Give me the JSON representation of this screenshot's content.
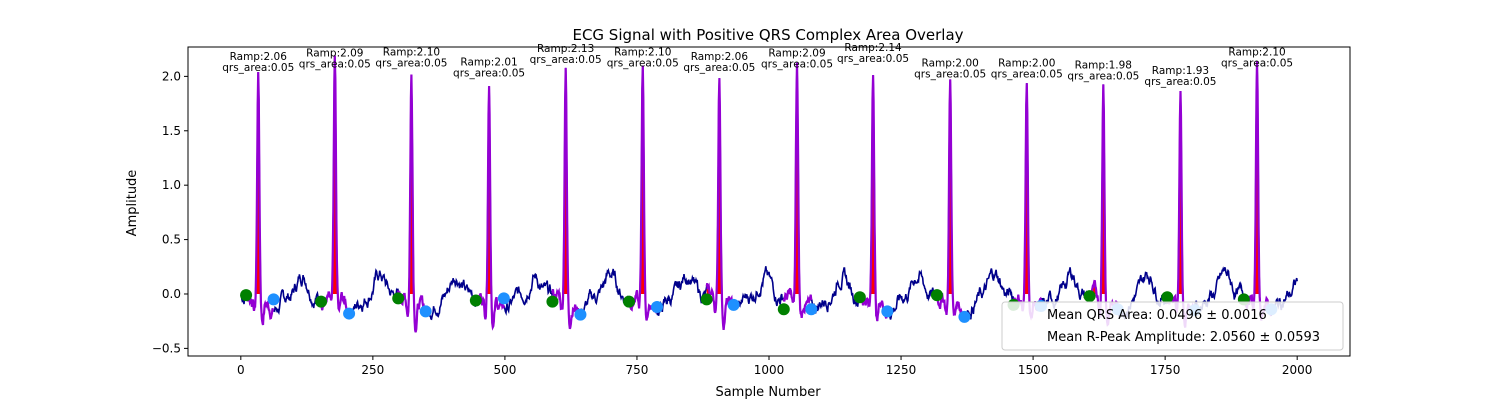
{
  "chart_data": {
    "type": "line",
    "title": "ECG Signal with Positive QRS Complex Area Overlay",
    "xlabel": "Sample Number",
    "ylabel": "Amplitude",
    "xlim": [
      -100,
      2100
    ],
    "ylim": [
      -0.57,
      2.27
    ],
    "xticks": [
      0,
      250,
      500,
      750,
      1000,
      1250,
      1500,
      1750,
      2000
    ],
    "yticks": [
      -0.5,
      0.0,
      0.5,
      1.0,
      1.5,
      2.0
    ],
    "grid": false,
    "num_samples": 2000,
    "colors": {
      "ecg_signal": "#00008b",
      "qrs_complex": "#9400d3",
      "qrs_area_fill": "#ff0000",
      "q_onset_marker": "#008000",
      "s_offset_marker": "#1e90ff"
    },
    "r_peaks": [
      {
        "x": 33,
        "ramp": 2.06,
        "ramp_label": "Ramp:2.06",
        "qrs_area_label": "qrs_area:0.05",
        "onset": {
          "x": 10,
          "y": -0.01
        },
        "offset": {
          "x": 62,
          "y": -0.05
        }
      },
      {
        "x": 178,
        "ramp": 2.09,
        "ramp_label": "Ramp:2.09",
        "qrs_area_label": "qrs_area:0.05",
        "onset": {
          "x": 152,
          "y": -0.07
        },
        "offset": {
          "x": 205,
          "y": -0.18
        }
      },
      {
        "x": 323,
        "ramp": 2.1,
        "ramp_label": "Ramp:2.10",
        "qrs_area_label": "qrs_area:0.05",
        "onset": {
          "x": 298,
          "y": -0.04
        },
        "offset": {
          "x": 350,
          "y": -0.16
        }
      },
      {
        "x": 470,
        "ramp": 2.01,
        "ramp_label": "Ramp:2.01",
        "qrs_area_label": "qrs_area:0.05",
        "onset": {
          "x": 445,
          "y": -0.06
        },
        "offset": {
          "x": 498,
          "y": -0.04
        }
      },
      {
        "x": 615,
        "ramp": 2.13,
        "ramp_label": "Ramp:2.13",
        "qrs_area_label": "qrs_area:0.05",
        "onset": {
          "x": 590,
          "y": -0.07
        },
        "offset": {
          "x": 643,
          "y": -0.19
        }
      },
      {
        "x": 761,
        "ramp": 2.1,
        "ramp_label": "Ramp:2.10",
        "qrs_area_label": "qrs_area:0.05",
        "onset": {
          "x": 735,
          "y": -0.07
        },
        "offset": {
          "x": 788,
          "y": -0.12
        }
      },
      {
        "x": 906,
        "ramp": 2.06,
        "ramp_label": "Ramp:2.06",
        "qrs_area_label": "qrs_area:0.05",
        "onset": {
          "x": 882,
          "y": -0.05
        },
        "offset": {
          "x": 933,
          "y": -0.1
        }
      },
      {
        "x": 1053,
        "ramp": 2.09,
        "ramp_label": "Ramp:2.09",
        "qrs_area_label": "qrs_area:0.05",
        "onset": {
          "x": 1028,
          "y": -0.14
        },
        "offset": {
          "x": 1080,
          "y": -0.14
        }
      },
      {
        "x": 1197,
        "ramp": 2.14,
        "ramp_label": "Ramp:2.14",
        "qrs_area_label": "qrs_area:0.05",
        "onset": {
          "x": 1172,
          "y": -0.03
        },
        "offset": {
          "x": 1224,
          "y": -0.16
        }
      },
      {
        "x": 1343,
        "ramp": 2.0,
        "ramp_label": "Ramp:2.00",
        "qrs_area_label": "qrs_area:0.05",
        "onset": {
          "x": 1318,
          "y": -0.01
        },
        "offset": {
          "x": 1370,
          "y": -0.21
        }
      },
      {
        "x": 1488,
        "ramp": 2.0,
        "ramp_label": "Ramp:2.00",
        "qrs_area_label": "qrs_area:0.05",
        "onset": {
          "x": 1463,
          "y": -0.1
        },
        "offset": {
          "x": 1515,
          "y": -0.11
        }
      },
      {
        "x": 1633,
        "ramp": 1.98,
        "ramp_label": "Ramp:1.98",
        "qrs_area_label": "qrs_area:0.05",
        "onset": {
          "x": 1607,
          "y": -0.02
        },
        "offset": {
          "x": 1660,
          "y": -0.14
        }
      },
      {
        "x": 1779,
        "ramp": 1.93,
        "ramp_label": "Ramp:1.93",
        "qrs_area_label": "qrs_area:0.05",
        "onset": {
          "x": 1754,
          "y": -0.03
        },
        "offset": {
          "x": 1806,
          "y": -0.15
        }
      },
      {
        "x": 1924,
        "ramp": 2.1,
        "ramp_label": "Ramp:2.10",
        "qrs_area_label": "qrs_area:0.05",
        "onset": {
          "x": 1899,
          "y": -0.05
        },
        "offset": {
          "x": 1951,
          "y": -0.14
        }
      }
    ],
    "legend": {
      "placement": "lower-right",
      "entries": [
        {
          "label": "Mean QRS Area: 0.0496 ± 0.0016"
        },
        {
          "label": "Mean R-Peak Amplitude: 2.0560 ± 0.0593"
        }
      ]
    }
  }
}
